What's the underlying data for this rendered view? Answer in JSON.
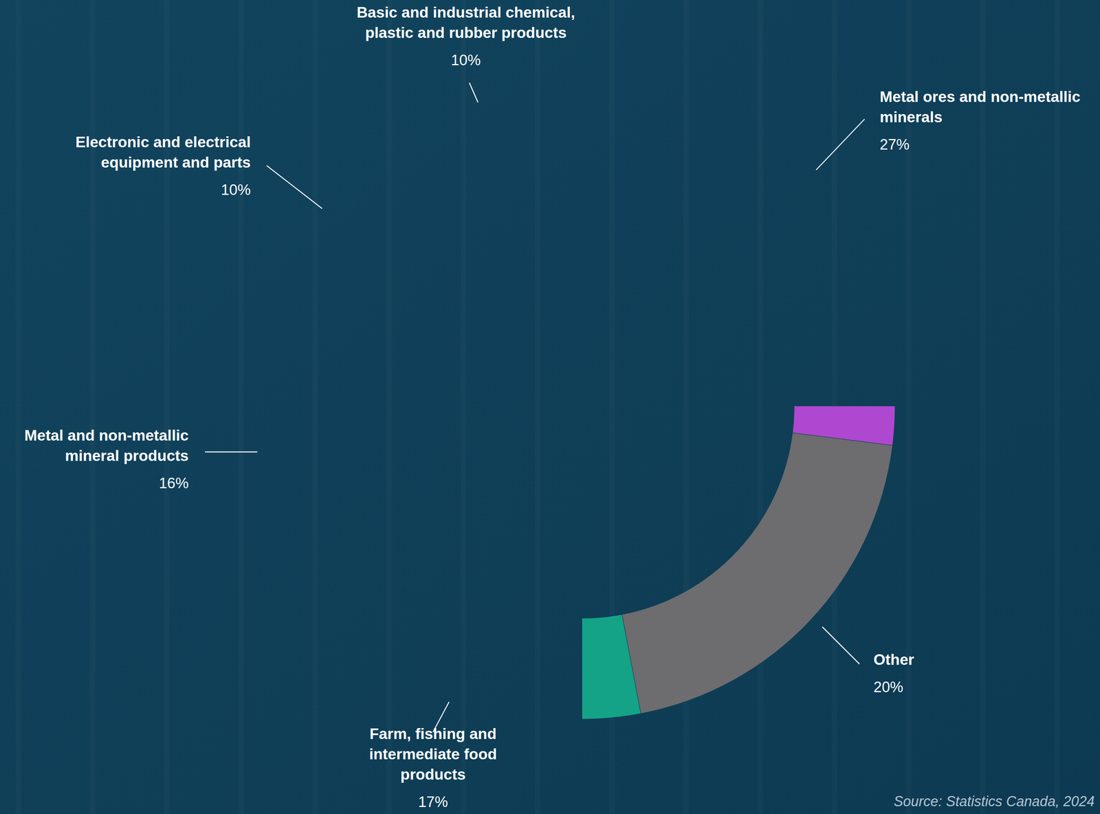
{
  "chart_data": {
    "type": "donut",
    "categories": [
      "Metal ores and non-metallic minerals",
      "Other",
      "Farm, fishing and intermediate food products",
      "Metal and non-metallic mineral products",
      "Electronic and electrical equipment and parts",
      "Basic and industrial chemical, plastic and rubber products"
    ],
    "values": [
      27,
      20,
      17,
      16,
      10,
      10
    ],
    "value_labels": [
      "27%",
      "20%",
      "17%",
      "16%",
      "10%",
      "10%"
    ],
    "colors": [
      "#ae48d0",
      "#6d6c6e",
      "#14a387",
      "#7e3799",
      "#48a8d6",
      "#1de2c0"
    ],
    "data_labels": true,
    "source": "Source: Statistics Canada, 2024"
  }
}
